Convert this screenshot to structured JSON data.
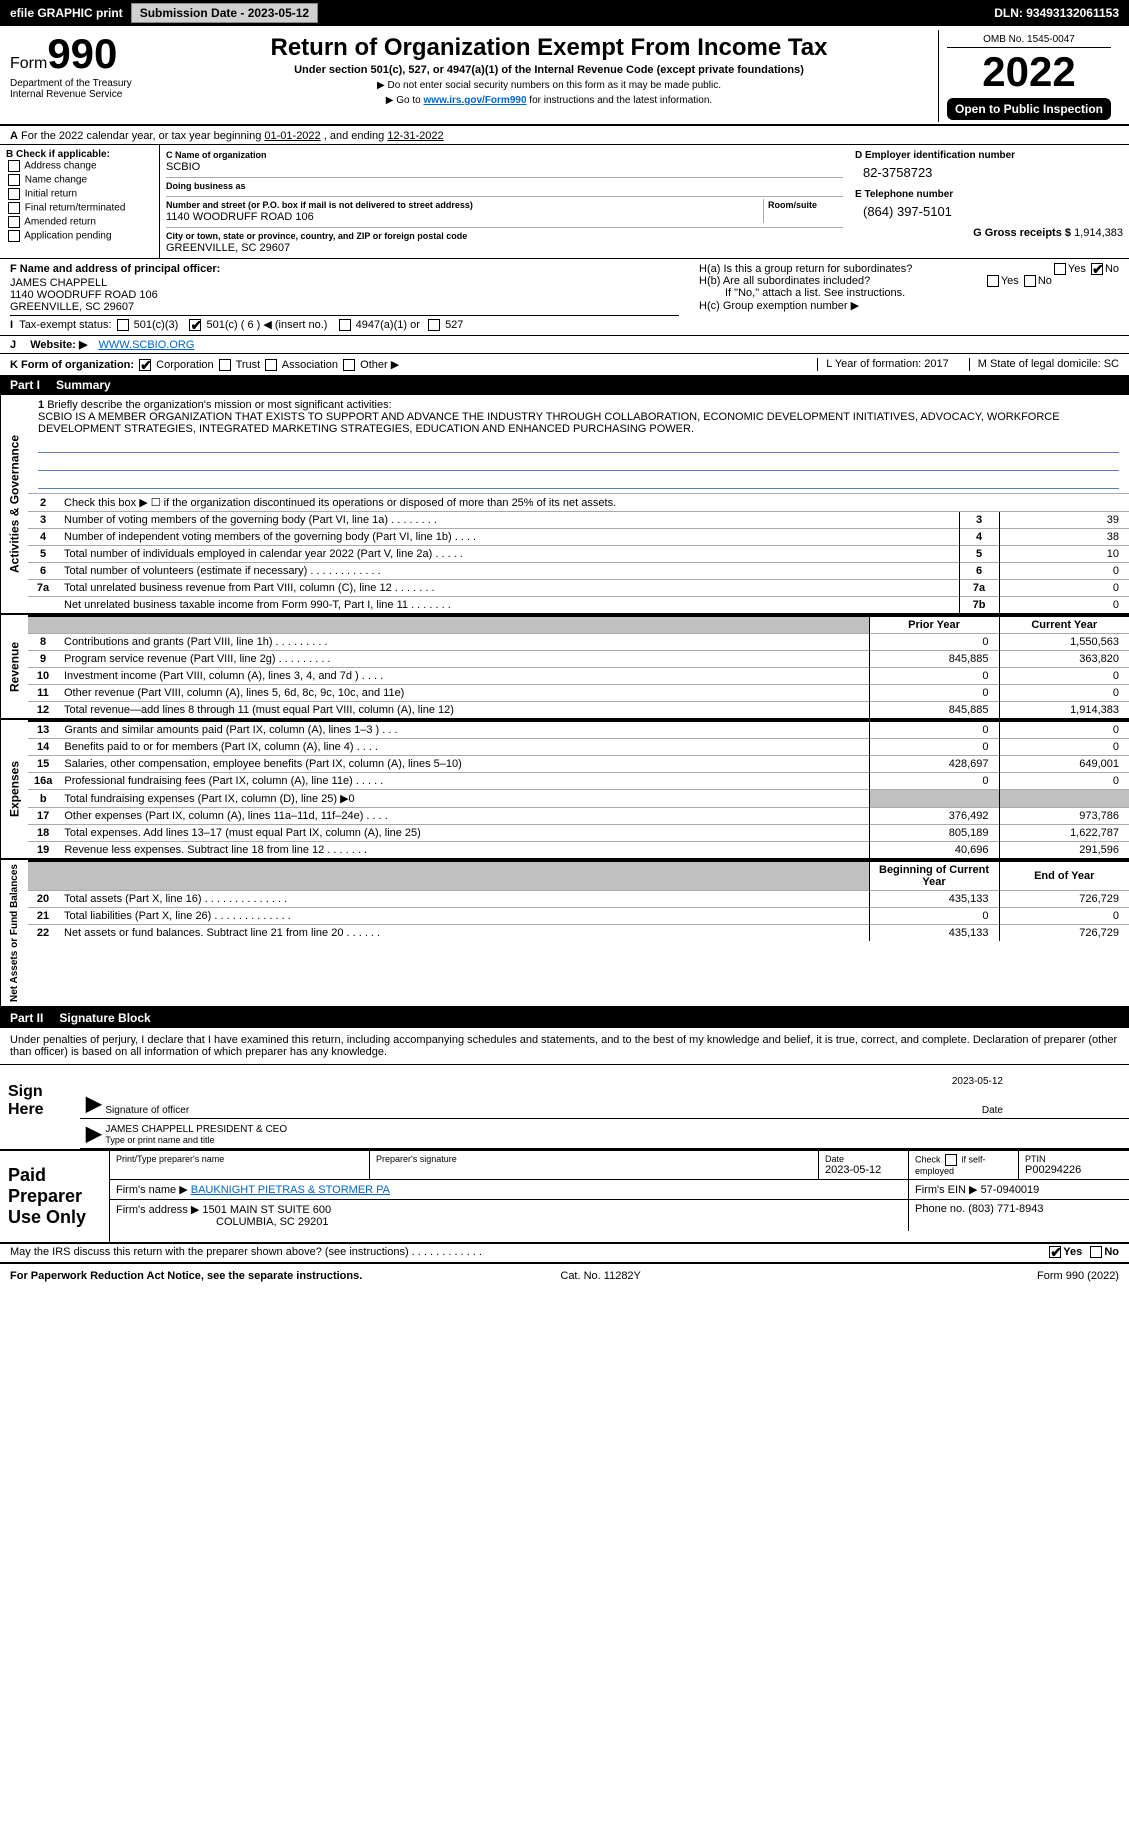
{
  "topbar": {
    "efile": "efile GRAPHIC print",
    "sub_btn": "Submission Date - 2023-05-12",
    "dln": "DLN: 93493132061153"
  },
  "header": {
    "form": "Form",
    "form_no": "990",
    "title": "Return of Organization Exempt From Income Tax",
    "sub1": "Under section 501(c), 527, or 4947(a)(1) of the Internal Revenue Code (except private foundations)",
    "tri1": "▶ Do not enter social security numbers on this form as it may be made public.",
    "tri2_a": "▶ Go to ",
    "tri2_link": "www.irs.gov/Form990",
    "tri2_b": " for instructions and the latest information.",
    "omb": "OMB No. 1545-0047",
    "year": "2022",
    "open": "Open to Public Inspection",
    "dept": "Department of the Treasury",
    "irs": "Internal Revenue Service"
  },
  "A": {
    "text_a": "For the 2022 calendar year, or tax year beginning ",
    "begin": "01-01-2022",
    "text_b": " , and ending ",
    "end": "12-31-2022"
  },
  "B": {
    "label": "B Check if applicable:",
    "addr": "Address change",
    "name": "Name change",
    "init": "Initial return",
    "final": "Final return/terminated",
    "amend": "Amended return",
    "app": "Application pending"
  },
  "C": {
    "name_lab": "C Name of organization",
    "name": "SCBIO",
    "dba_lab": "Doing business as",
    "street_lab": "Number and street (or P.O. box if mail is not delivered to street address)",
    "room_lab": "Room/suite",
    "street": "1140 WOODRUFF ROAD 106",
    "city_lab": "City or town, state or province, country, and ZIP or foreign postal code",
    "city": "GREENVILLE, SC  29607"
  },
  "D": {
    "lab": "D Employer identification number",
    "val": "82-3758723"
  },
  "E": {
    "lab": "E Telephone number",
    "val": "(864) 397-5101"
  },
  "G": {
    "lab": "G Gross receipts $",
    "val": "1,914,383"
  },
  "F": {
    "lab": "F  Name and address of principal officer:",
    "name": "JAMES CHAPPELL",
    "addr1": "1140 WOODRUFF ROAD 106",
    "addr2": "GREENVILLE, SC  29607"
  },
  "H": {
    "a": "H(a)  Is this a group return for subordinates?",
    "yes": "Yes",
    "no": "No",
    "b": "H(b)  Are all subordinates included?",
    "b2": "If \"No,\" attach a list. See instructions.",
    "c": "H(c)  Group exemption number ▶"
  },
  "I": {
    "lab": "Tax-exempt status:",
    "o1": "501(c)(3)",
    "o2": "501(c) ( 6 ) ◀ (insert no.)",
    "o3": "4947(a)(1) or",
    "o4": "527"
  },
  "J": {
    "lab": "Website: ▶",
    "val": "WWW.SCBIO.ORG"
  },
  "K": {
    "lab": "K Form of organization:",
    "corp": "Corporation",
    "trust": "Trust",
    "assoc": "Association",
    "other": "Other ▶",
    "L": "L Year of formation: 2017",
    "M": "M State of legal domicile: SC"
  },
  "part1": {
    "hdr": "Part I",
    "title": "Summary"
  },
  "p1": {
    "l1_lab": "Briefly describe the organization's mission or most significant activities:",
    "l1_txt": "SCBIO IS A MEMBER ORGANIZATION THAT EXISTS TO SUPPORT AND ADVANCE THE INDUSTRY THROUGH COLLABORATION, ECONOMIC DEVELOPMENT INITIATIVES, ADVOCACY, WORKFORCE DEVELOPMENT STRATEGIES, INTEGRATED MARKETING STRATEGIES, EDUCATION AND ENHANCED PURCHASING POWER.",
    "l2": "Check this box ▶ ☐ if the organization discontinued its operations or disposed of more than 25% of its net assets.",
    "rows_gov": [
      {
        "n": "3",
        "t": "Number of voting members of the governing body (Part VI, line 1a)  .  .  .  .  .  .  .  .",
        "b": "3",
        "v": "39"
      },
      {
        "n": "4",
        "t": "Number of independent voting members of the governing body (Part VI, line 1b)  .  .  .  .",
        "b": "4",
        "v": "38"
      },
      {
        "n": "5",
        "t": "Total number of individuals employed in calendar year 2022 (Part V, line 2a)  .  .  .  .  .",
        "b": "5",
        "v": "10"
      },
      {
        "n": "6",
        "t": "Total number of volunteers (estimate if necessary)  .  .  .  .  .  .  .  .  .  .  .  .",
        "b": "6",
        "v": "0"
      },
      {
        "n": "7a",
        "t": "Total unrelated business revenue from Part VIII, column (C), line 12  .  .  .  .  .  .  .",
        "b": "7a",
        "v": "0"
      },
      {
        "n": "",
        "t": "Net unrelated business taxable income from Form 990-T, Part I, line 11  .  .  .  .  .  .  .",
        "b": "7b",
        "v": "0"
      }
    ],
    "yr_prior": "Prior Year",
    "yr_curr": "Current Year",
    "rows_rev": [
      {
        "n": "8",
        "t": "Contributions and grants (Part VIII, line 1h)  .  .  .  .  .  .  .  .  .",
        "p": "0",
        "c": "1,550,563"
      },
      {
        "n": "9",
        "t": "Program service revenue (Part VIII, line 2g)  .  .  .  .  .  .  .  .  .",
        "p": "845,885",
        "c": "363,820"
      },
      {
        "n": "10",
        "t": "Investment income (Part VIII, column (A), lines 3, 4, and 7d )  .  .  .  .",
        "p": "0",
        "c": "0"
      },
      {
        "n": "11",
        "t": "Other revenue (Part VIII, column (A), lines 5, 6d, 8c, 9c, 10c, and 11e)",
        "p": "0",
        "c": "0"
      },
      {
        "n": "12",
        "t": "Total revenue—add lines 8 through 11 (must equal Part VIII, column (A), line 12)",
        "p": "845,885",
        "c": "1,914,383"
      }
    ],
    "rows_exp": [
      {
        "n": "13",
        "t": "Grants and similar amounts paid (Part IX, column (A), lines 1–3 )  .  .  .",
        "p": "0",
        "c": "0"
      },
      {
        "n": "14",
        "t": "Benefits paid to or for members (Part IX, column (A), line 4)  .  .  .  .",
        "p": "0",
        "c": "0"
      },
      {
        "n": "15",
        "t": "Salaries, other compensation, employee benefits (Part IX, column (A), lines 5–10)",
        "p": "428,697",
        "c": "649,001"
      },
      {
        "n": "16a",
        "t": "Professional fundraising fees (Part IX, column (A), line 11e)  .  .  .  .  .",
        "p": "0",
        "c": "0"
      },
      {
        "n": "b",
        "t": "Total fundraising expenses (Part IX, column (D), line 25) ▶0",
        "p": "",
        "c": "",
        "grey": true
      },
      {
        "n": "17",
        "t": "Other expenses (Part IX, column (A), lines 11a–11d, 11f–24e)  .  .  .  .",
        "p": "376,492",
        "c": "973,786"
      },
      {
        "n": "18",
        "t": "Total expenses. Add lines 13–17 (must equal Part IX, column (A), line 25)",
        "p": "805,189",
        "c": "1,622,787"
      },
      {
        "n": "19",
        "t": "Revenue less expenses. Subtract line 18 from line 12  .  .  .  .  .  .  .",
        "p": "40,696",
        "c": "291,596"
      }
    ],
    "na_hdr_p": "Beginning of Current Year",
    "na_hdr_c": "End of Year",
    "rows_na": [
      {
        "n": "20",
        "t": "Total assets (Part X, line 16)  .  .  .  .  .  .  .  .  .  .  .  .  .  .",
        "p": "435,133",
        "c": "726,729"
      },
      {
        "n": "21",
        "t": "Total liabilities (Part X, line 26)  .  .  .  .  .  .  .  .  .  .  .  .  .",
        "p": "0",
        "c": "0"
      },
      {
        "n": "22",
        "t": "Net assets or fund balances. Subtract line 21 from line 20  .  .  .  .  .  .",
        "p": "435,133",
        "c": "726,729"
      }
    ]
  },
  "side": {
    "gov": "Activities & Governance",
    "rev": "Revenue",
    "exp": "Expenses",
    "na": "Net Assets or Fund Balances"
  },
  "part2": {
    "hdr": "Part II",
    "title": "Signature Block"
  },
  "sig": {
    "decl": "Under penalties of perjury, I declare that I have examined this return, including accompanying schedules and statements, and to the best of my knowledge and belief, it is true, correct, and complete. Declaration of preparer (other than officer) is based on all information of which preparer has any knowledge.",
    "here": "Sign Here",
    "date": "2023-05-12",
    "l1": "Signature of officer",
    "l1d": "Date",
    "name": "JAMES CHAPPELL  PRESIDENT & CEO",
    "l2": "Type or print name and title"
  },
  "paid": {
    "left": "Paid Preparer Use Only",
    "h1": "Print/Type preparer's name",
    "h2": "Preparer's signature",
    "h3": "Date",
    "h3v": "2023-05-12",
    "h4a": "Check",
    "h4b": "if self-employed",
    "h5": "PTIN",
    "h5v": "P00294226",
    "firm_lab": "Firm's name    ▶",
    "firm": "BAUKNIGHT PIETRAS & STORMER PA",
    "ein_lab": "Firm's EIN ▶",
    "ein": "57-0940019",
    "addr_lab": "Firm's address ▶",
    "addr1": "1501 MAIN ST SUITE 600",
    "addr2": "COLUMBIA, SC  29201",
    "phone_lab": "Phone no.",
    "phone": "(803) 771-8943"
  },
  "may": {
    "q": "May the IRS discuss this return with the preparer shown above? (see instructions)  .  .  .  .  .  .  .  .  .  .  .  .",
    "yes": "Yes",
    "no": "No"
  },
  "footer": {
    "l": "For Paperwork Reduction Act Notice, see the separate instructions.",
    "m": "Cat. No. 11282Y",
    "r": "Form 990 (2022)"
  }
}
